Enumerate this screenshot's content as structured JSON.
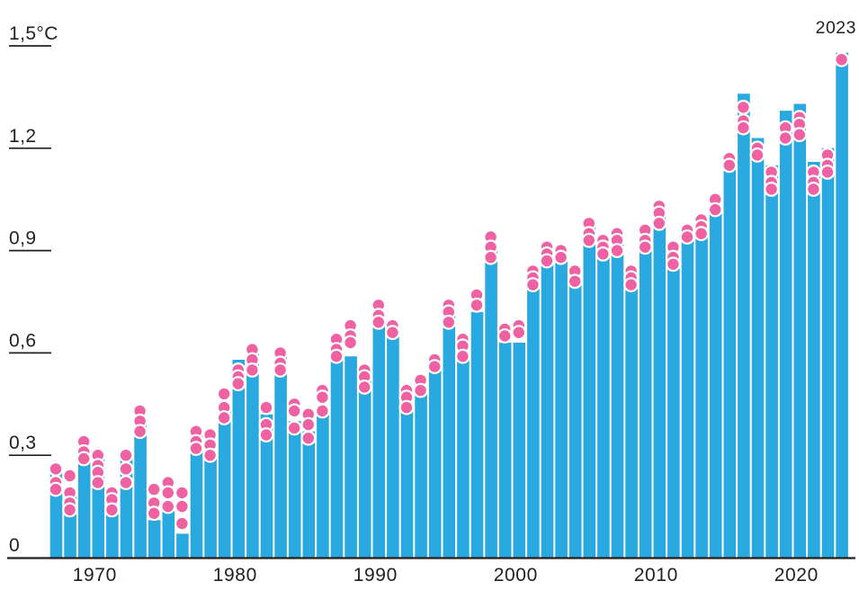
{
  "chart_data": {
    "type": "bar",
    "title": "",
    "xlabel": "",
    "ylabel": "",
    "unit": "°C",
    "ylim": [
      0,
      1.55
    ],
    "grid": false,
    "annotation_label": "2023",
    "y_ticks": [
      {
        "value": 1.5,
        "label": "1,5°C"
      },
      {
        "value": 1.2,
        "label": "1,2"
      },
      {
        "value": 0.9,
        "label": "0,9"
      },
      {
        "value": 0.6,
        "label": "0,6"
      },
      {
        "value": 0.3,
        "label": "0,3"
      },
      {
        "value": 0,
        "label": "0"
      }
    ],
    "x_ticks": [
      {
        "year": 1970,
        "label": "1970"
      },
      {
        "year": 1980,
        "label": "1980"
      },
      {
        "year": 1990,
        "label": "1990"
      },
      {
        "year": 2000,
        "label": "2000"
      },
      {
        "year": 2010,
        "label": "2010"
      },
      {
        "year": 2020,
        "label": "2020"
      }
    ],
    "colors": {
      "bar": "#29A9E0",
      "dot": "#EE62A3",
      "dot_stroke": "#FFFFFF",
      "axis": "#231F20",
      "text": "#231F20",
      "background": "#FFFFFF"
    },
    "series": [
      {
        "year": 1967,
        "bar": 0.27,
        "dots": [
          0.26,
          0.22,
          0.2
        ]
      },
      {
        "year": 1968,
        "bar": 0.2,
        "dots": [
          0.24,
          0.19,
          0.16,
          0.14
        ]
      },
      {
        "year": 1969,
        "bar": 0.32,
        "dots": [
          0.34,
          0.31,
          0.29
        ]
      },
      {
        "year": 1970,
        "bar": 0.31,
        "dots": [
          0.3,
          0.27,
          0.25,
          0.22
        ]
      },
      {
        "year": 1971,
        "bar": 0.15,
        "dots": [
          0.19,
          0.17,
          0.14
        ]
      },
      {
        "year": 1972,
        "bar": 0.29,
        "dots": [
          0.3,
          0.26,
          0.22
        ]
      },
      {
        "year": 1973,
        "bar": 0.39,
        "dots": [
          0.43,
          0.4,
          0.37
        ]
      },
      {
        "year": 1974,
        "bar": 0.11,
        "dots": [
          0.2,
          0.16,
          0.13
        ]
      },
      {
        "year": 1975,
        "bar": 0.14,
        "dots": [
          0.22,
          0.19,
          0.15
        ]
      },
      {
        "year": 1976,
        "bar": 0.07,
        "dots": [
          0.19,
          0.15,
          0.1
        ]
      },
      {
        "year": 1977,
        "bar": 0.36,
        "dots": [
          0.37,
          0.34,
          0.32
        ]
      },
      {
        "year": 1978,
        "bar": 0.29,
        "dots": [
          0.36,
          0.33,
          0.3
        ]
      },
      {
        "year": 1979,
        "bar": 0.45,
        "dots": [
          0.48,
          0.44,
          0.41
        ]
      },
      {
        "year": 1980,
        "bar": 0.58,
        "dots": [
          0.55,
          0.53,
          0.51
        ]
      },
      {
        "year": 1981,
        "bar": 0.62,
        "dots": [
          0.61,
          0.58,
          0.55
        ]
      },
      {
        "year": 1982,
        "bar": 0.42,
        "dots": [
          0.44,
          0.39,
          0.36
        ]
      },
      {
        "year": 1983,
        "bar": 0.61,
        "dots": [
          0.6,
          0.57,
          0.55
        ]
      },
      {
        "year": 1984,
        "bar": 0.4,
        "dots": [
          0.45,
          0.43,
          0.38
        ]
      },
      {
        "year": 1985,
        "bar": 0.37,
        "dots": [
          0.42,
          0.39,
          0.35
        ]
      },
      {
        "year": 1986,
        "bar": 0.44,
        "dots": [
          0.49,
          0.47,
          0.43
        ]
      },
      {
        "year": 1987,
        "bar": 0.58,
        "dots": [
          0.64,
          0.61,
          0.59
        ]
      },
      {
        "year": 1988,
        "bar": 0.59,
        "dots": [
          0.68,
          0.65,
          0.63
        ]
      },
      {
        "year": 1989,
        "bar": 0.52,
        "dots": [
          0.55,
          0.53,
          0.5
        ]
      },
      {
        "year": 1990,
        "bar": 0.71,
        "dots": [
          0.74,
          0.71,
          0.69
        ]
      },
      {
        "year": 1991,
        "bar": 0.69,
        "dots": [
          0.68,
          0.66
        ]
      },
      {
        "year": 1992,
        "bar": 0.43,
        "dots": [
          0.49,
          0.47,
          0.44
        ]
      },
      {
        "year": 1993,
        "bar": 0.49,
        "dots": [
          0.52,
          0.49
        ]
      },
      {
        "year": 1994,
        "bar": 0.55,
        "dots": [
          0.58,
          0.56
        ]
      },
      {
        "year": 1995,
        "bar": 0.71,
        "dots": [
          0.74,
          0.72,
          0.69
        ]
      },
      {
        "year": 1996,
        "bar": 0.59,
        "dots": [
          0.64,
          0.62,
          0.59
        ]
      },
      {
        "year": 1997,
        "bar": 0.72,
        "dots": [
          0.77,
          0.74
        ]
      },
      {
        "year": 1998,
        "bar": 0.92,
        "dots": [
          0.94,
          0.91,
          0.88
        ]
      },
      {
        "year": 1999,
        "bar": 0.63,
        "dots": [
          0.67,
          0.65
        ]
      },
      {
        "year": 2000,
        "bar": 0.63,
        "dots": [
          0.68,
          0.66
        ]
      },
      {
        "year": 2001,
        "bar": 0.8,
        "dots": [
          0.84,
          0.82,
          0.8
        ]
      },
      {
        "year": 2002,
        "bar": 0.89,
        "dots": [
          0.91,
          0.89,
          0.87
        ]
      },
      {
        "year": 2003,
        "bar": 0.88,
        "dots": [
          0.9,
          0.88
        ]
      },
      {
        "year": 2004,
        "bar": 0.81,
        "dots": [
          0.84,
          0.81
        ]
      },
      {
        "year": 2005,
        "bar": 0.99,
        "dots": [
          0.98,
          0.95,
          0.93
        ]
      },
      {
        "year": 2006,
        "bar": 0.94,
        "dots": [
          0.93,
          0.91,
          0.89
        ]
      },
      {
        "year": 2007,
        "bar": 0.95,
        "dots": [
          0.95,
          0.93,
          0.9
        ]
      },
      {
        "year": 2008,
        "bar": 0.82,
        "dots": [
          0.84,
          0.82,
          0.8
        ]
      },
      {
        "year": 2009,
        "bar": 0.94,
        "dots": [
          0.96,
          0.93,
          0.91
        ]
      },
      {
        "year": 2010,
        "bar": 1.02,
        "dots": [
          1.03,
          1.01,
          0.98
        ]
      },
      {
        "year": 2011,
        "bar": 0.89,
        "dots": [
          0.91,
          0.88,
          0.86
        ]
      },
      {
        "year": 2012,
        "bar": 0.93,
        "dots": [
          0.96,
          0.94
        ]
      },
      {
        "year": 2013,
        "bar": 0.95,
        "dots": [
          0.99,
          0.97,
          0.95
        ]
      },
      {
        "year": 2014,
        "bar": 1.02,
        "dots": [
          1.05,
          1.02
        ]
      },
      {
        "year": 2015,
        "bar": 1.16,
        "dots": [
          1.17,
          1.15
        ]
      },
      {
        "year": 2016,
        "bar": 1.36,
        "dots": [
          1.32,
          1.28,
          1.26
        ]
      },
      {
        "year": 2017,
        "bar": 1.23,
        "dots": [
          1.2,
          1.18
        ]
      },
      {
        "year": 2018,
        "bar": 1.15,
        "dots": [
          1.13,
          1.1,
          1.08
        ]
      },
      {
        "year": 2019,
        "bar": 1.31,
        "dots": [
          1.26,
          1.23
        ]
      },
      {
        "year": 2020,
        "bar": 1.33,
        "dots": [
          1.29,
          1.27,
          1.24
        ]
      },
      {
        "year": 2021,
        "bar": 1.16,
        "dots": [
          1.13,
          1.1,
          1.08
        ]
      },
      {
        "year": 2022,
        "bar": 1.2,
        "dots": [
          1.18,
          1.15,
          1.13
        ]
      },
      {
        "year": 2023,
        "bar": 1.48,
        "dots": [
          1.46
        ]
      }
    ]
  }
}
